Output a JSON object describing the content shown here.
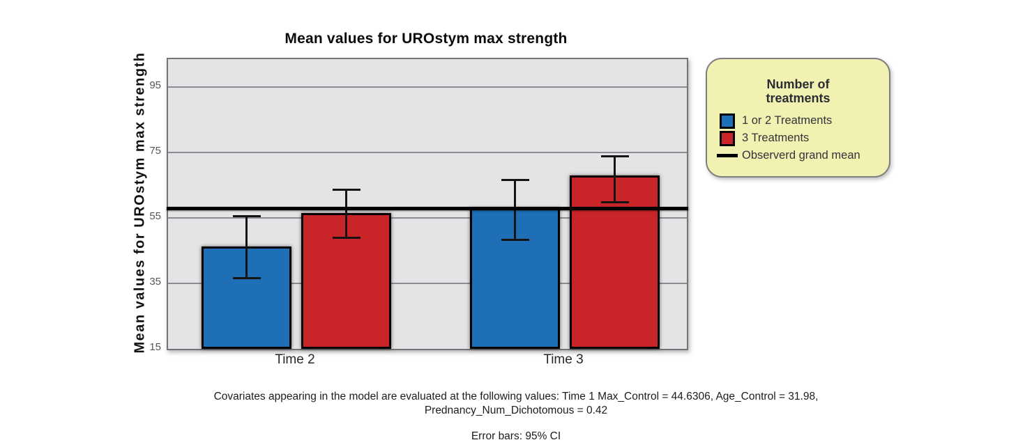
{
  "figure": {
    "title": "Mean values for UROstym max strength",
    "y_axis_label": "Mean values for UROstym max strength",
    "footnote_line1": "Covariates appearing in the model are evaluated at the following values: Time 1 Max_Control = 44.6306, Age_Control = 31.98,",
    "footnote_line2": "Prednancy_Num_Dichotomous = 0.42",
    "error_note": "Error bars: 95% CI"
  },
  "legend": {
    "title_line1": "Number of",
    "title_line2": "treatments",
    "items": [
      {
        "swatch": "blue-square",
        "label": "1 or 2 Treatments",
        "color": "#1e6fb5"
      },
      {
        "swatch": "red-square",
        "label": "3 Treatments",
        "color": "#c92528"
      },
      {
        "swatch": "black-line",
        "label": "Observerd grand mean",
        "color": "#000000"
      }
    ]
  },
  "chart_data": {
    "type": "bar",
    "title": "Mean values for UROstym max strength",
    "xlabel": "",
    "ylabel": "Mean values for UROstym max strength",
    "categories": [
      "Time 2",
      "Time 3"
    ],
    "series": [
      {
        "name": "1 or 2 Treatments",
        "color": "#1e6fb5",
        "values": [
          46.3,
          58.0
        ],
        "ci_low": [
          36.5,
          48.2
        ],
        "ci_high": [
          55.7,
          66.8
        ]
      },
      {
        "name": "3 Treatments",
        "color": "#c92528",
        "values": [
          56.4,
          68.0
        ],
        "ci_low": [
          48.8,
          59.7
        ],
        "ci_high": [
          63.7,
          74.0
        ]
      }
    ],
    "grand_mean": 57.8,
    "grand_mean_label": "Observerd grand mean",
    "y_ticks": [
      15,
      35,
      55,
      75,
      95
    ],
    "ylim": [
      15,
      103.5
    ],
    "error_bars": "95% CI",
    "grid": true,
    "legend_position": "right",
    "plot_background": "#e4e4e6",
    "legend_background": "#f1f1b2"
  }
}
